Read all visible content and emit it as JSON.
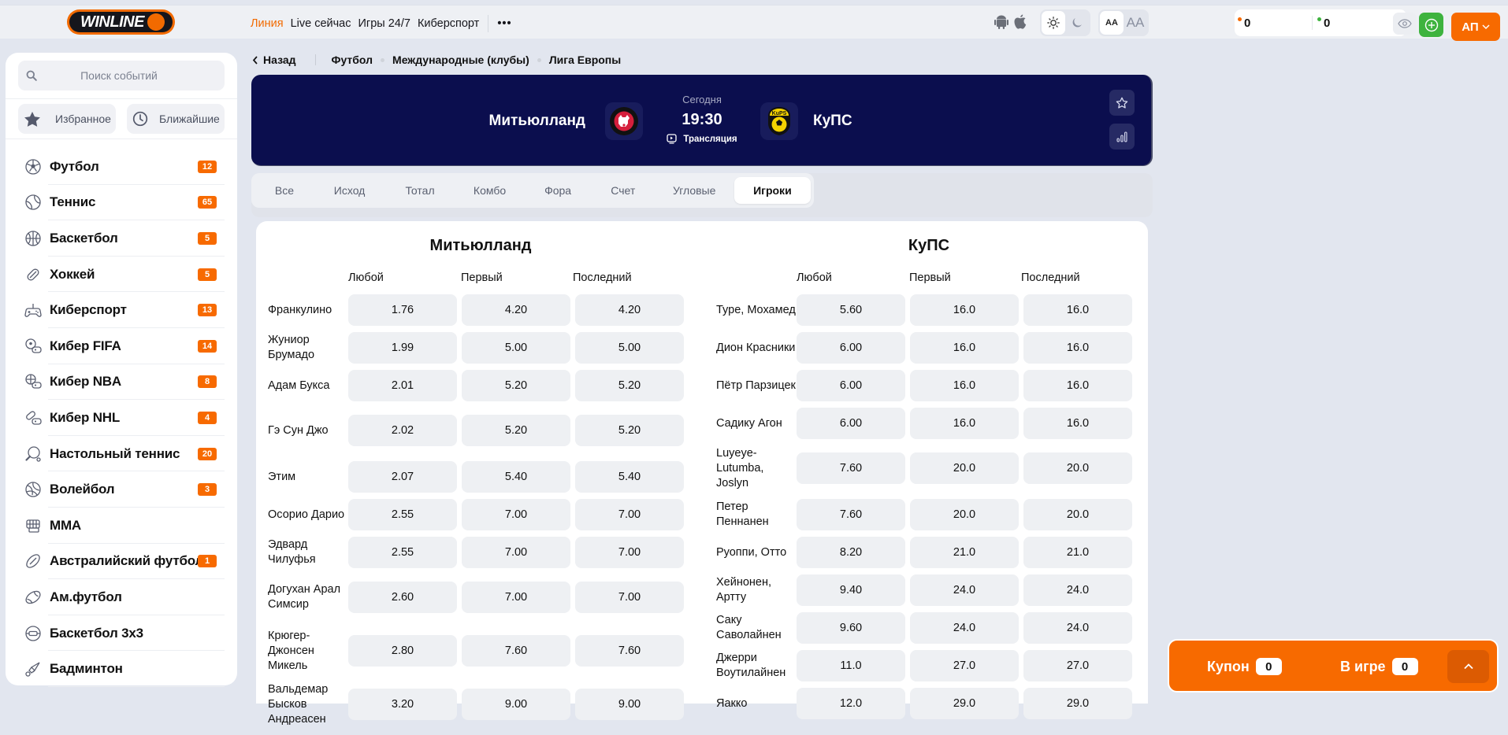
{
  "header": {
    "logo_text": "WINLINE",
    "nav": [
      {
        "label": "Линия",
        "active": true
      },
      {
        "label": "Live сейчас",
        "active": false
      },
      {
        "label": "Игры 24/7",
        "active": false
      },
      {
        "label": "Киберспорт",
        "active": false
      }
    ],
    "more_label": "•••",
    "font_small_label": "AA",
    "font_large_label": "AA",
    "balance_main": "0",
    "balance_bonus": "0",
    "user_initials": "АП",
    "colors": {
      "accent": "#f76a00",
      "add": "#3eb33e"
    }
  },
  "sidebar": {
    "search_placeholder": "Поиск событий",
    "favorites_label": "Избранное",
    "upcoming_label": "Ближайшие",
    "items": [
      {
        "label": "Футбол",
        "count": "12",
        "icon": "soccer-ball-icon"
      },
      {
        "label": "Теннис",
        "count": "65",
        "icon": "tennis-ball-icon"
      },
      {
        "label": "Баскетбол",
        "count": "5",
        "icon": "basketball-icon"
      },
      {
        "label": "Хоккей",
        "count": "5",
        "icon": "hockey-puck-icon"
      },
      {
        "label": "Киберспорт",
        "count": "13",
        "icon": "gamepad-icon"
      },
      {
        "label": "Кибер FIFA",
        "count": "14",
        "icon": "cyber-fifa-icon"
      },
      {
        "label": "Кибер NBA",
        "count": "8",
        "icon": "cyber-nba-icon"
      },
      {
        "label": "Кибер NHL",
        "count": "4",
        "icon": "cyber-nhl-icon"
      },
      {
        "label": "Настольный теннис",
        "count": "20",
        "icon": "table-tennis-icon"
      },
      {
        "label": "Волейбол",
        "count": "3",
        "icon": "volleyball-icon"
      },
      {
        "label": "MMA",
        "count": null,
        "icon": "mma-glove-icon"
      },
      {
        "label": "Австралийский футбол",
        "count": "1",
        "icon": "aussie-football-icon"
      },
      {
        "label": "Ам.футбол",
        "count": null,
        "icon": "american-football-icon"
      },
      {
        "label": "Баскетбол 3x3",
        "count": null,
        "icon": "basketball-3x3-icon"
      },
      {
        "label": "Бадминтон",
        "count": null,
        "icon": "shuttlecock-icon"
      }
    ]
  },
  "breadcrumb": {
    "back_label": "Назад",
    "items": [
      "Футбол",
      "Международные (клубы)",
      "Лига Европы"
    ]
  },
  "match": {
    "home": "Митьюлланд",
    "away": "КуПС",
    "day": "Сегодня",
    "time": "19:30",
    "stream_label": "Трансляция",
    "colors": {
      "banner": "#0b0e4e"
    }
  },
  "tabs": [
    {
      "label": "Все",
      "active": false
    },
    {
      "label": "Исход",
      "active": false
    },
    {
      "label": "Тотал",
      "active": false
    },
    {
      "label": "Комбо",
      "active": false
    },
    {
      "label": "Фора",
      "active": false
    },
    {
      "label": "Счет",
      "active": false
    },
    {
      "label": "Угловые",
      "active": false
    },
    {
      "label": "Игроки",
      "active": true
    }
  ],
  "players": {
    "columns": [
      "Любой",
      "Первый",
      "Последний"
    ],
    "home": {
      "team": "Митьюлланд",
      "rows": [
        {
          "name": "Франкулино",
          "odds": [
            "1.76",
            "4.20",
            "4.20"
          ]
        },
        {
          "name": "Жуниор Брумадо",
          "odds": [
            "1.99",
            "5.00",
            "5.00"
          ]
        },
        {
          "name": "Адам Букса",
          "odds": [
            "2.01",
            "5.20",
            "5.20"
          ]
        },
        {
          "name": "Гэ Сун Джо",
          "odds": [
            "2.02",
            "5.20",
            "5.20"
          ]
        },
        {
          "name": "Этим",
          "odds": [
            "2.07",
            "5.40",
            "5.40"
          ]
        },
        {
          "name": "Осорио Дарио",
          "odds": [
            "2.55",
            "7.00",
            "7.00"
          ]
        },
        {
          "name": "Эдвард Чилуфья",
          "odds": [
            "2.55",
            "7.00",
            "7.00"
          ]
        },
        {
          "name": "Догухан Арал Симсир",
          "odds": [
            "2.60",
            "7.00",
            "7.00"
          ]
        },
        {
          "name": "Крюгер-Джонсен Микель",
          "odds": [
            "2.80",
            "7.60",
            "7.60"
          ]
        },
        {
          "name": "Вальдемар Бысков Андреасен",
          "odds": [
            "3.20",
            "9.00",
            "9.00"
          ]
        }
      ]
    },
    "away": {
      "team": "КуПС",
      "rows": [
        {
          "name": "Туре, Мохамед",
          "odds": [
            "5.60",
            "16.0",
            "16.0"
          ]
        },
        {
          "name": "Дион Красники",
          "odds": [
            "6.00",
            "16.0",
            "16.0"
          ]
        },
        {
          "name": "Пётр Парзицек",
          "odds": [
            "6.00",
            "16.0",
            "16.0"
          ]
        },
        {
          "name": "Садику Агон",
          "odds": [
            "6.00",
            "16.0",
            "16.0"
          ]
        },
        {
          "name": "Luyeye-Lutumba, Joslyn",
          "odds": [
            "7.60",
            "20.0",
            "20.0"
          ]
        },
        {
          "name": "Петер Пеннанен",
          "odds": [
            "7.60",
            "20.0",
            "20.0"
          ]
        },
        {
          "name": "Руоппи, Отто",
          "odds": [
            "8.20",
            "21.0",
            "21.0"
          ]
        },
        {
          "name": "Хейнонен, Артту",
          "odds": [
            "9.40",
            "24.0",
            "24.0"
          ]
        },
        {
          "name": "Саку Саволайнен",
          "odds": [
            "9.60",
            "24.0",
            "24.0"
          ]
        },
        {
          "name": "Джерри Воутилайнен",
          "odds": [
            "11.0",
            "27.0",
            "27.0"
          ]
        },
        {
          "name": "Яакко",
          "odds": [
            "12.0",
            "29.0",
            "29.0"
          ]
        }
      ]
    }
  },
  "coupon": {
    "coupon_label": "Купон",
    "coupon_count": "0",
    "ingame_label": "В игре",
    "ingame_count": "0"
  }
}
